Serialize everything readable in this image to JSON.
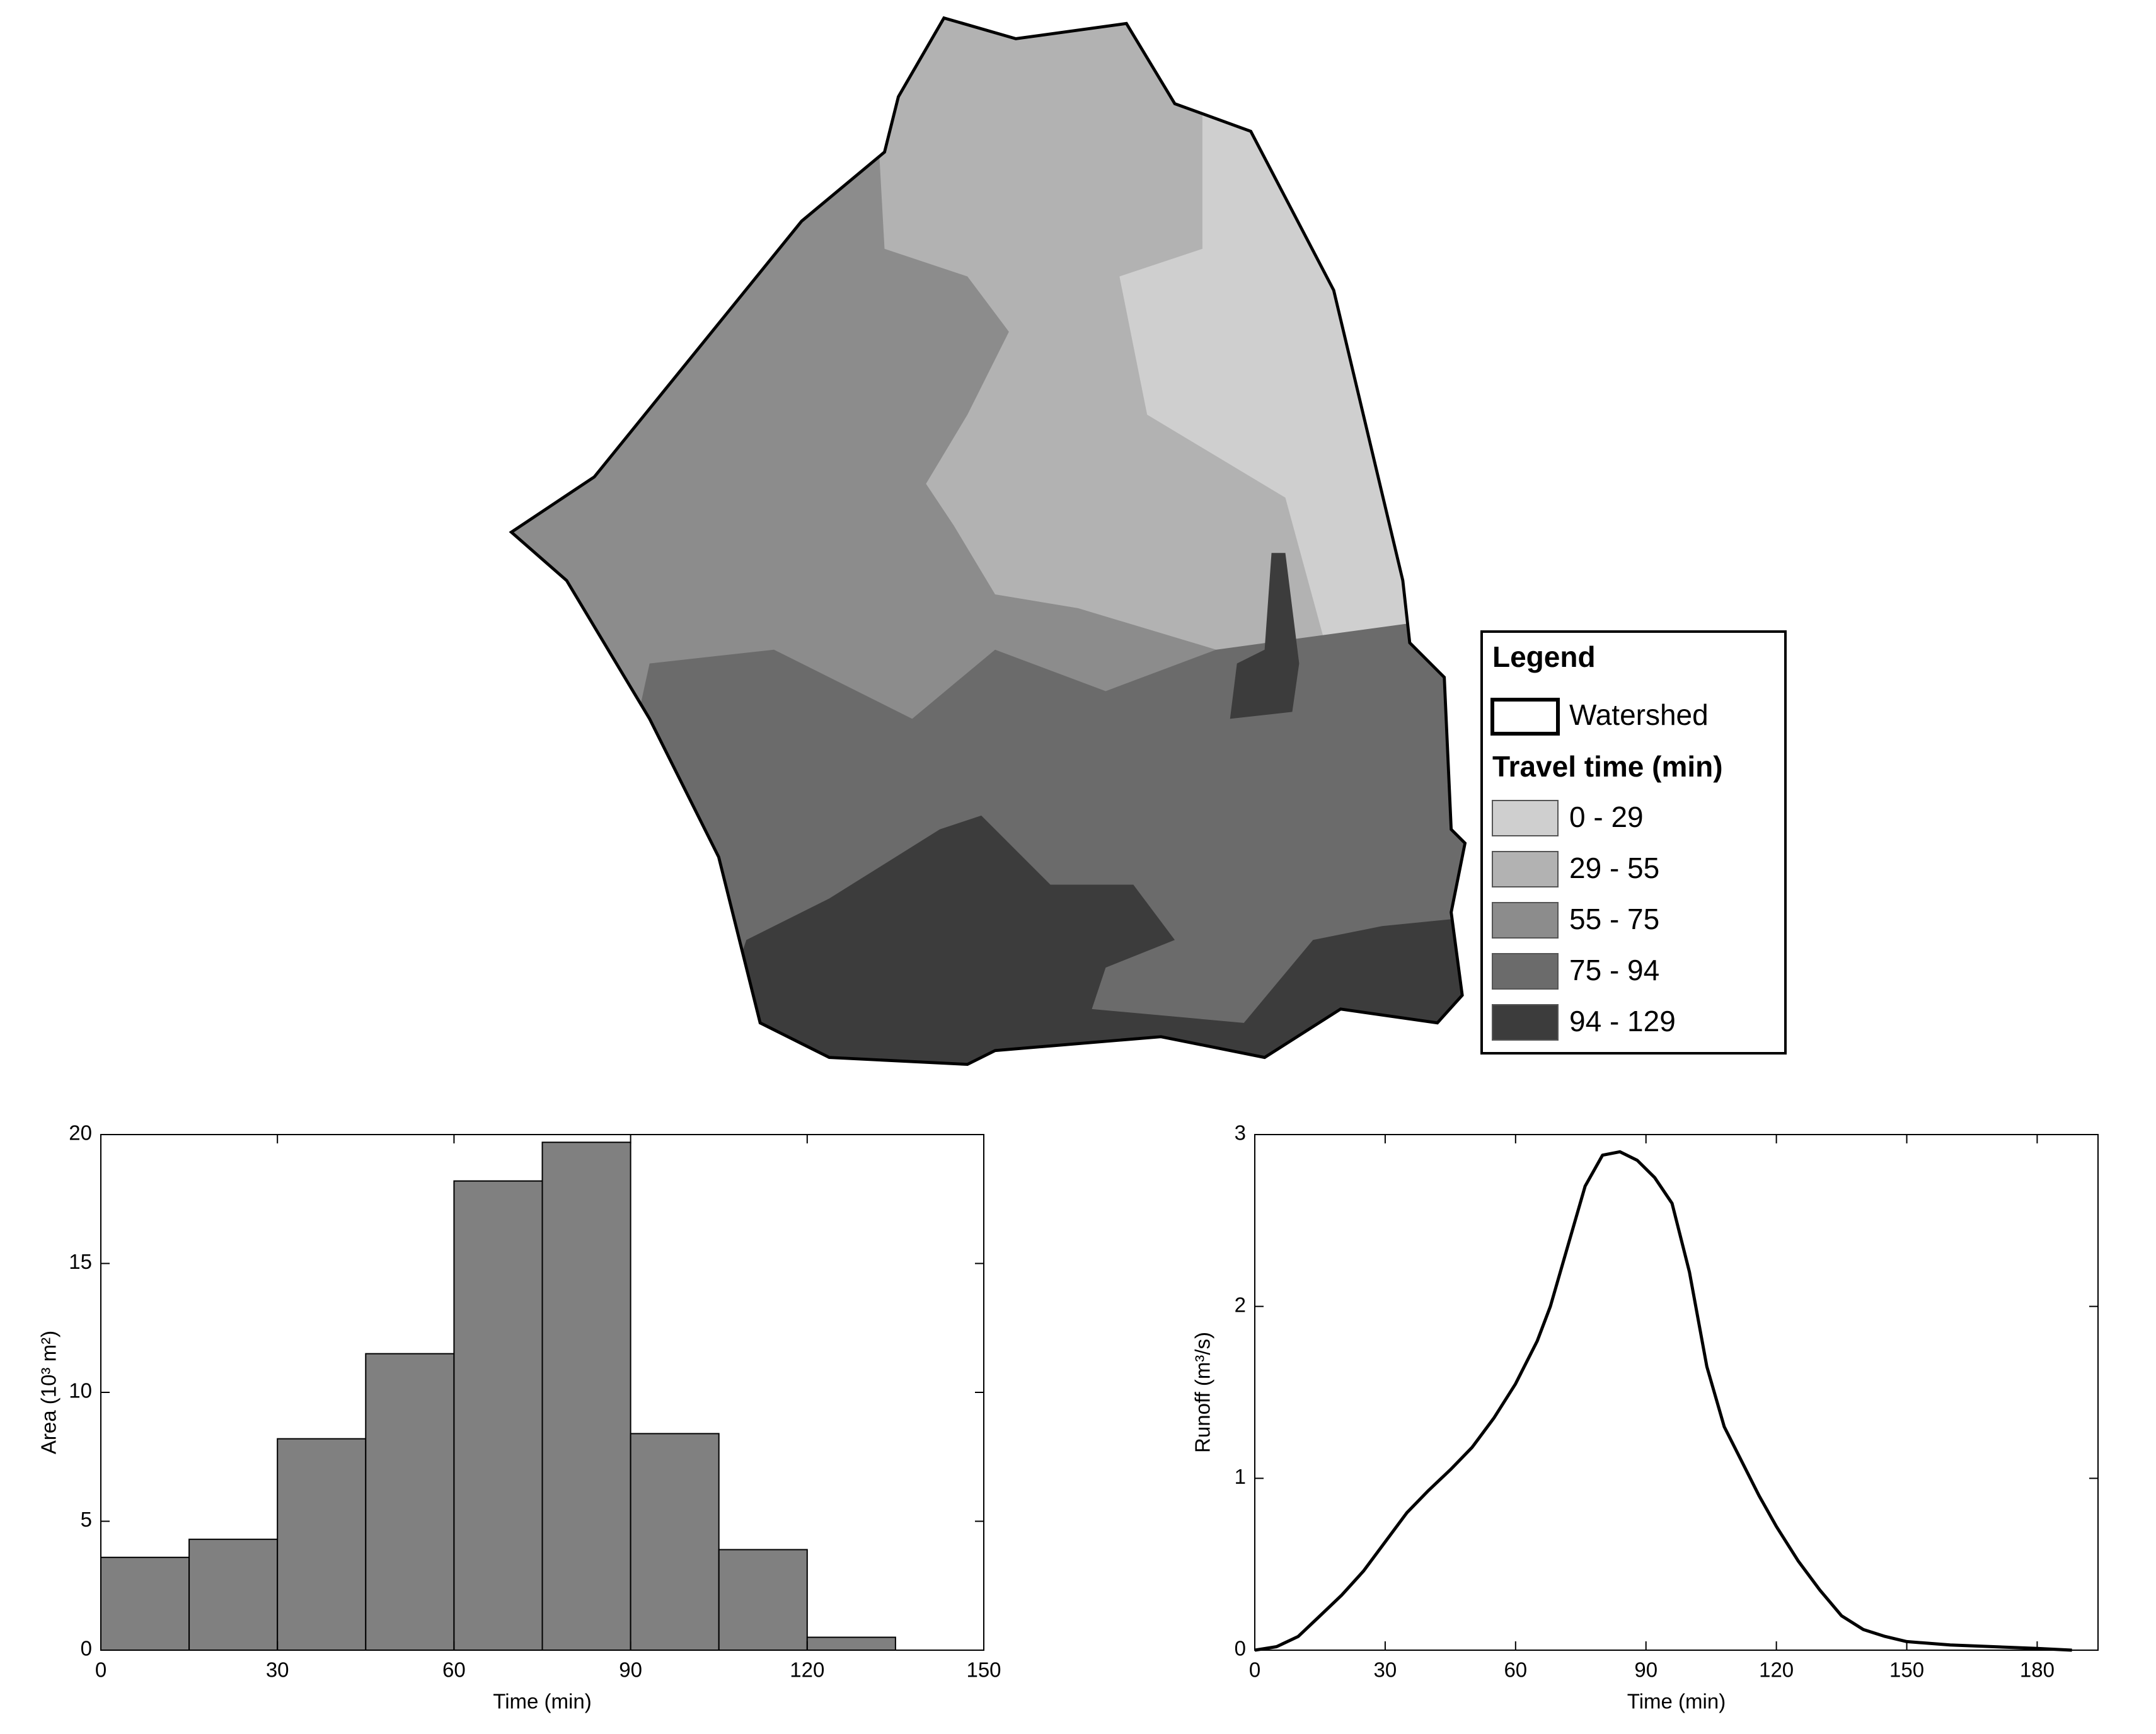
{
  "map": {
    "legend": {
      "title": "Legend",
      "watershed": "Watershed",
      "subtitle": "Travel time (min)",
      "classes": [
        {
          "label": "0 - 29",
          "color": "#cfcfcf"
        },
        {
          "label": "29 - 55",
          "color": "#b2b2b2"
        },
        {
          "label": "55 - 75",
          "color": "#8c8c8c"
        },
        {
          "label": "75 - 94",
          "color": "#6b6b6b"
        },
        {
          "label": "94 - 129",
          "color": "#3c3c3c"
        }
      ]
    }
  },
  "chart_data": [
    {
      "type": "histogram",
      "xlabel": "Time (min)",
      "ylabel": "Area (10³ m²)",
      "bins": [
        0,
        15,
        30,
        45,
        60,
        75,
        90,
        105,
        120,
        135
      ],
      "values": [
        3.6,
        4.3,
        8.2,
        11.5,
        18.2,
        19.7,
        8.4,
        3.9,
        0.5
      ],
      "color": "#808080",
      "xlim": [
        0,
        150
      ],
      "xticks": [
        0,
        30,
        60,
        90,
        120,
        150
      ],
      "ylim": [
        0,
        20
      ],
      "yticks": [
        0,
        5,
        10,
        15,
        20
      ]
    },
    {
      "type": "line",
      "xlabel": "Time (min)",
      "ylabel": "Runoff (m³/s)",
      "x": [
        0,
        5,
        10,
        15,
        20,
        25,
        30,
        35,
        40,
        45,
        50,
        55,
        60,
        65,
        68,
        72,
        76,
        80,
        84,
        88,
        92,
        96,
        100,
        104,
        108,
        112,
        116,
        120,
        125,
        130,
        135,
        140,
        145,
        150,
        160,
        170,
        180,
        188
      ],
      "values": [
        0,
        0.02,
        0.08,
        0.2,
        0.32,
        0.46,
        0.63,
        0.8,
        0.93,
        1.05,
        1.18,
        1.35,
        1.55,
        1.8,
        2.0,
        2.35,
        2.7,
        2.88,
        2.9,
        2.85,
        2.75,
        2.6,
        2.2,
        1.65,
        1.3,
        1.1,
        0.9,
        0.72,
        0.52,
        0.35,
        0.2,
        0.12,
        0.08,
        0.05,
        0.03,
        0.02,
        0.01,
        0
      ],
      "color": "#000000",
      "xlim": [
        0,
        194
      ],
      "xticks": [
        0,
        30,
        60,
        90,
        120,
        150,
        180
      ],
      "ylim": [
        0,
        3
      ],
      "yticks": [
        0,
        1,
        2,
        3
      ]
    }
  ]
}
